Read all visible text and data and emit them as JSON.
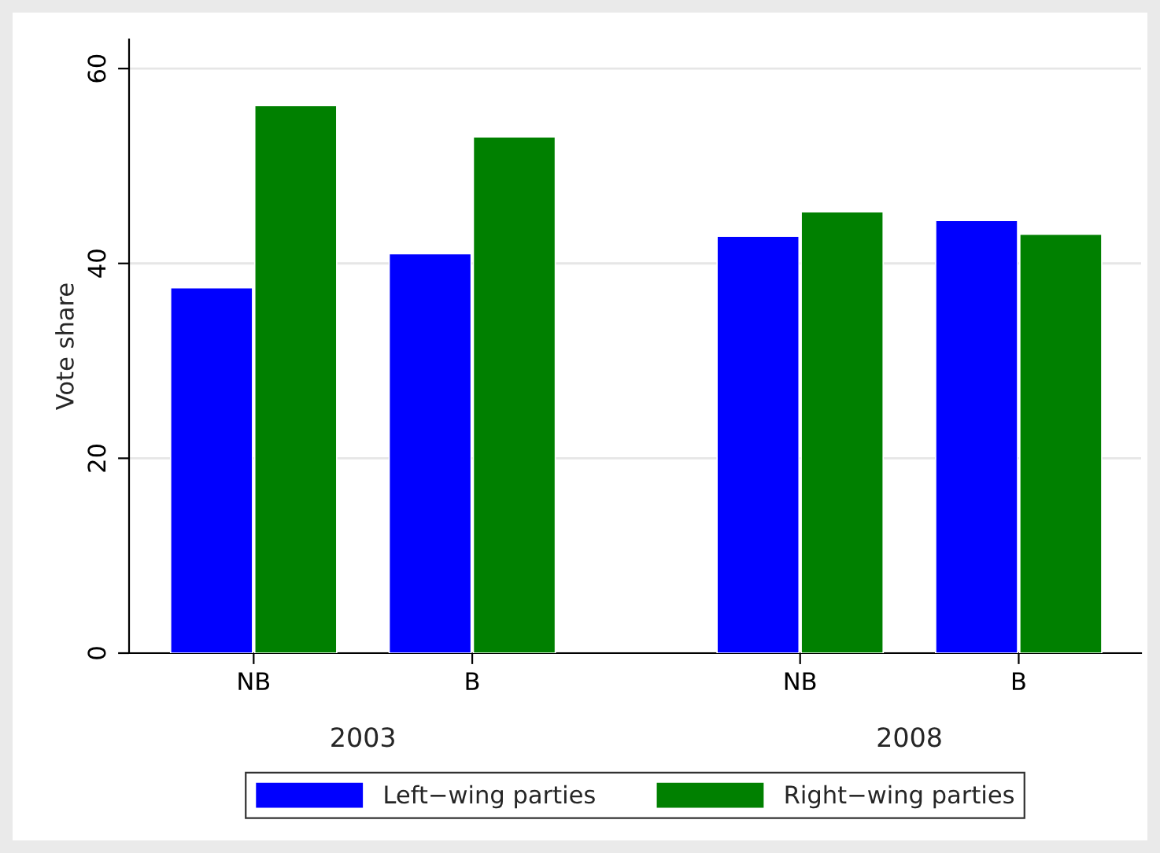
{
  "chart_data": {
    "type": "bar",
    "ylabel": "Vote share",
    "categories": [
      "NB",
      "B",
      "NB",
      "B"
    ],
    "series": [
      {
        "name": "Left−wing parties",
        "color": "#0000ff",
        "values": [
          37.5,
          41.0,
          42.8,
          44.4
        ]
      },
      {
        "name": "Right−wing parties",
        "color": "#008000",
        "values": [
          56.2,
          53.0,
          45.3,
          43.0
        ]
      }
    ],
    "annotations": [
      "2003",
      "2008"
    ],
    "ylim": [
      0,
      63
    ],
    "yticks": [
      0,
      20,
      40,
      60
    ],
    "grid": "y",
    "legend": "bottom"
  }
}
